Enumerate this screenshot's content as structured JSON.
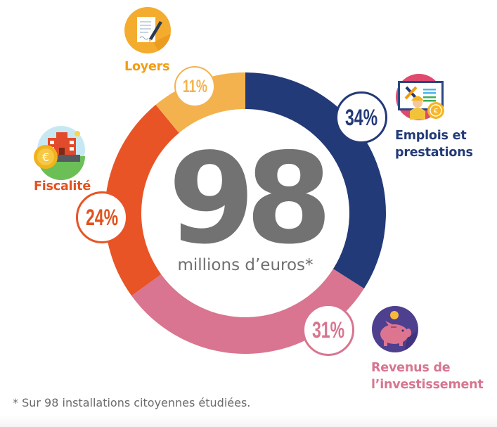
{
  "chart_data": {
    "type": "pie",
    "subtype": "donut",
    "title": "98 millions d'euros*",
    "center": {
      "value": "98",
      "unit": "millions d’euros*"
    },
    "categories": [
      "Emplois et prestations",
      "Revenus de l’investissement",
      "Fiscalité",
      "Loyers"
    ],
    "values": [
      34,
      31,
      24,
      11
    ],
    "value_labels": [
      "34%",
      "31%",
      "24%",
      "11%"
    ],
    "colors": [
      "#233a78",
      "#d97590",
      "#e85426",
      "#f3b24e"
    ],
    "start_angle_deg": 0,
    "direction": "clockwise",
    "footnote": "* Sur 98 installations citoyennes étudiées."
  },
  "center": {
    "number": "98",
    "unit": "millions d’euros*"
  },
  "segments": [
    {
      "label_line1": "Emplois et",
      "label_line2": "prestations",
      "pct": "34%",
      "color": "#233a78",
      "label_color": "#233a78",
      "icon": "worker-screen-icon"
    },
    {
      "label_line1": "Revenus de",
      "label_line2": "l’investissement",
      "pct": "31%",
      "color": "#d97590",
      "label_color": "#d77590",
      "icon": "piggy-bank-icon"
    },
    {
      "label_line1": "Fiscalité",
      "pct": "24%",
      "color": "#e85426",
      "label_color": "#e2521f",
      "icon": "town-hall-coin-icon"
    },
    {
      "label_line1": "Loyers",
      "pct": "11%",
      "color": "#f3b24e",
      "label_color": "#f39c12",
      "icon": "contract-signing-icon"
    }
  ],
  "footnote": "* Sur 98 installations citoyennes étudiées."
}
